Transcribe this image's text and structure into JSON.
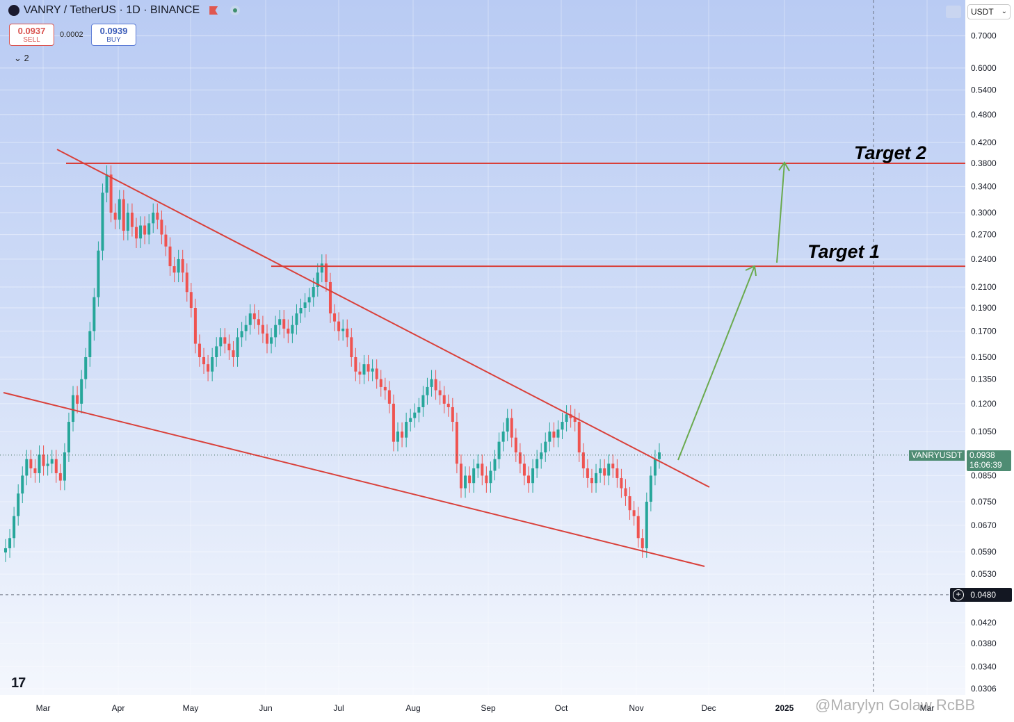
{
  "header": {
    "symbol_title": "VANRY / TetherUS · 1D · BINANCE",
    "sell_price": "0.0937",
    "sell_label": "SELL",
    "spread": "0.0002",
    "buy_price": "0.0939",
    "buy_label": "BUY",
    "indicators_count": "2",
    "currency": "USDT"
  },
  "annotations": {
    "target2": "Target 2",
    "target1": "Target 1"
  },
  "last_price": {
    "symbol": "VANRYUSDT",
    "price": "0.0938",
    "countdown": "16:06:39"
  },
  "crosshair_price": "0.0480",
  "watermark": "@Marylyn Golaw RcBB",
  "chart_data": {
    "type": "candlestick",
    "symbol": "VANRY / TetherUS",
    "interval": "1D",
    "exchange": "BINANCE",
    "scale": "log",
    "ylim": [
      0.0306,
      0.74
    ],
    "price_ticks": [
      "0.7000",
      "0.6000",
      "0.5400",
      "0.4800",
      "0.4200",
      "0.3800",
      "0.3400",
      "0.3000",
      "0.2700",
      "0.2400",
      "0.2100",
      "0.1900",
      "0.1700",
      "0.1500",
      "0.1350",
      "0.1200",
      "0.1050",
      "0.0850",
      "0.0750",
      "0.0670",
      "0.0590",
      "0.0530",
      "0.0420",
      "0.0380",
      "0.0340",
      "0.0306"
    ],
    "time_ticks": [
      "Mar",
      "Apr",
      "May",
      "Jun",
      "Jul",
      "Aug",
      "Sep",
      "Oct",
      "Nov",
      "Dec",
      "2025",
      "Mar"
    ],
    "colors": {
      "up": "#26a69a",
      "down": "#ef5350",
      "trend": "#d9403a",
      "arrow": "#6aaa4e"
    },
    "levels": [
      0.38,
      0.232
    ],
    "closes": [
      0.06,
      0.063,
      0.07,
      0.078,
      0.085,
      0.092,
      0.088,
      0.086,
      0.094,
      0.089,
      0.09,
      0.092,
      0.086,
      0.083,
      0.095,
      0.11,
      0.125,
      0.12,
      0.135,
      0.15,
      0.17,
      0.2,
      0.25,
      0.33,
      0.36,
      0.3,
      0.29,
      0.32,
      0.275,
      0.3,
      0.28,
      0.265,
      0.282,
      0.27,
      0.285,
      0.3,
      0.29,
      0.27,
      0.255,
      0.232,
      0.225,
      0.24,
      0.225,
      0.205,
      0.19,
      0.16,
      0.15,
      0.145,
      0.14,
      0.15,
      0.158,
      0.165,
      0.16,
      0.155,
      0.15,
      0.165,
      0.17,
      0.175,
      0.185,
      0.18,
      0.175,
      0.168,
      0.16,
      0.165,
      0.175,
      0.18,
      0.172,
      0.168,
      0.175,
      0.185,
      0.19,
      0.195,
      0.2,
      0.21,
      0.225,
      0.235,
      0.215,
      0.185,
      0.178,
      0.17,
      0.172,
      0.165,
      0.15,
      0.14,
      0.138,
      0.145,
      0.14,
      0.142,
      0.135,
      0.13,
      0.128,
      0.12,
      0.1,
      0.105,
      0.102,
      0.11,
      0.112,
      0.115,
      0.118,
      0.125,
      0.13,
      0.135,
      0.128,
      0.125,
      0.12,
      0.118,
      0.11,
      0.09,
      0.08,
      0.085,
      0.082,
      0.088,
      0.09,
      0.085,
      0.082,
      0.087,
      0.092,
      0.1,
      0.105,
      0.112,
      0.102,
      0.095,
      0.09,
      0.085,
      0.082,
      0.088,
      0.092,
      0.095,
      0.1,
      0.105,
      0.102,
      0.106,
      0.11,
      0.114,
      0.112,
      0.11,
      0.095,
      0.088,
      0.084,
      0.082,
      0.086,
      0.088,
      0.085,
      0.09,
      0.088,
      0.084,
      0.08,
      0.077,
      0.072,
      0.07,
      0.063,
      0.06,
      0.075,
      0.085,
      0.092,
      0.095
    ]
  }
}
